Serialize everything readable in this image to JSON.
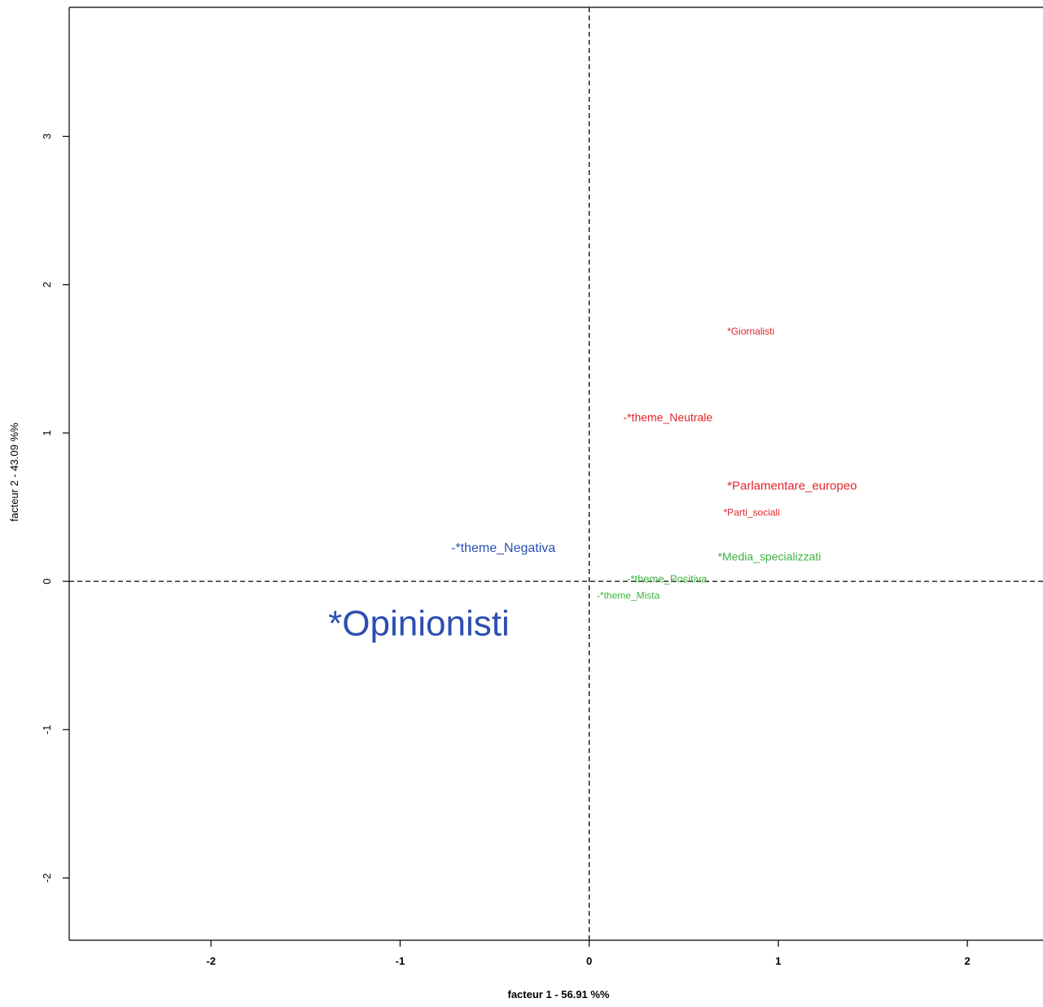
{
  "chart_data": {
    "type": "scatter",
    "title": "",
    "xlabel": "facteur  1  - 56.91 %%",
    "ylabel": "facteur  2  - 43.09 %%",
    "xlim": [
      -2.75,
      2.4
    ],
    "ylim": [
      -2.42,
      3.87
    ],
    "x_ticks": [
      -2,
      -1,
      0,
      1,
      2
    ],
    "y_ticks": [
      -2,
      -1,
      0,
      1,
      2,
      3
    ],
    "x_tick_labels": [
      "-2",
      "-1",
      "0",
      "1",
      "2"
    ],
    "y_tick_labels": [
      "-2",
      "-1",
      "0",
      "1",
      "2",
      "3"
    ],
    "grid": false,
    "reference_lines": {
      "x": 0,
      "y": 0,
      "style": "dashed"
    },
    "colors": {
      "red": "#e0242b",
      "blue": "#2b4eb0",
      "green": "#3db53f",
      "axis": "#000000"
    },
    "points": [
      {
        "label": "*Giornalisti",
        "x": 0.73,
        "y": 1.68,
        "color": "red",
        "size": 12
      },
      {
        "label": "-*theme_Neutrale",
        "x": 0.18,
        "y": 1.1,
        "color": "red",
        "size": 14
      },
      {
        "label": "*Parlamentare_europeo",
        "x": 0.73,
        "y": 0.64,
        "color": "red",
        "size": 15
      },
      {
        "label": "*Parti_sociali",
        "x": 0.71,
        "y": 0.46,
        "color": "red",
        "size": 12
      },
      {
        "label": "-*theme_Negativa",
        "x": -0.73,
        "y": 0.22,
        "color": "blue",
        "size": 16
      },
      {
        "label": "*Media_specializzati",
        "x": 0.68,
        "y": 0.16,
        "color": "green",
        "size": 14
      },
      {
        "label": "-*theme_Positiva",
        "x": 0.2,
        "y": 0.01,
        "color": "green",
        "size": 13
      },
      {
        "label": "-*theme_Mista",
        "x": 0.04,
        "y": -0.1,
        "color": "green",
        "size": 12
      },
      {
        "label": "*Opinionisti",
        "x": -1.38,
        "y": -0.3,
        "color": "blue",
        "size": 44
      }
    ]
  }
}
